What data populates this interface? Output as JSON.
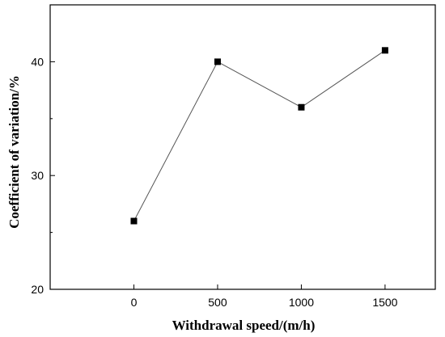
{
  "chart_data": {
    "type": "line",
    "title": "",
    "xlabel": "Withdrawal speed/(m/h)",
    "ylabel": "Coefficient of variation/%",
    "xlim": [
      -500,
      1800
    ],
    "ylim": [
      20,
      45
    ],
    "xticks": [
      0,
      500,
      1000,
      1500
    ],
    "yticks": [
      20,
      30,
      40
    ],
    "grid": false,
    "legend": "none",
    "series": [
      {
        "x": [
          0,
          500,
          1000,
          1500
        ],
        "y": [
          26,
          40,
          36,
          41
        ],
        "marker": "square",
        "color": "#000000",
        "line_color": "#555555"
      }
    ]
  }
}
